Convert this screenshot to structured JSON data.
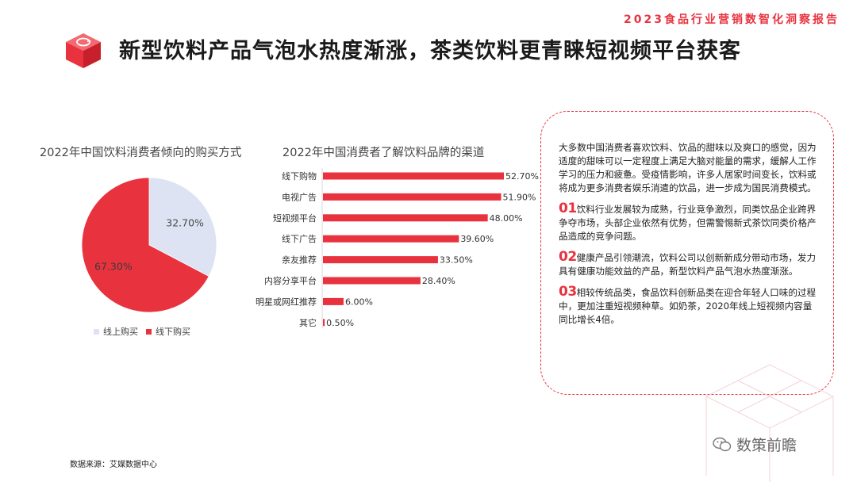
{
  "report_tag": "2023食品行业营销数智化洞察报告",
  "title": "新型饮料产品气泡水热度渐涨，茶类饮料更青睐短视频平台获客",
  "colors": {
    "accent": "#e8333f",
    "online": "#dde3f3",
    "offline": "#e8333f"
  },
  "logo_icon": "refresh-cube-icon",
  "chart_data": [
    {
      "type": "pie",
      "title": "2022年中国饮料消费者倾向的购买方式",
      "series": [
        {
          "name": "线上购买",
          "value": 32.7,
          "label": "32.70%"
        },
        {
          "name": "线下购买",
          "value": 67.3,
          "label": "67.30%"
        }
      ],
      "legend": "bottom"
    },
    {
      "type": "bar",
      "orientation": "horizontal",
      "title": "2022年中国消费者了解饮料品牌的渠道",
      "categories": [
        "线下购物",
        "电视广告",
        "短视频平台",
        "线下广告",
        "亲友推荐",
        "内容分享平台",
        "明星或网红推荐",
        "其它"
      ],
      "values": [
        52.7,
        51.9,
        48.0,
        39.6,
        33.5,
        28.4,
        6.0,
        0.5
      ],
      "labels": [
        "52.70%",
        "51.90%",
        "48.00%",
        "39.60%",
        "33.50%",
        "28.40%",
        "6.00%",
        "0.50%"
      ],
      "xlim": [
        0,
        55
      ]
    }
  ],
  "panel": {
    "intro": "大多数中国消费者喜欢饮料、饮品的甜味以及爽口的感觉，因为适度的甜味可以一定程度上满足大脑对能量的需求，缓解人工作学习的压力和疲惫。受疫情影响，许多人居家时间变长，饮料或将成为更多消费者娱乐消遣的饮品，进一步成为国民消费模式。",
    "points": [
      {
        "num": "01",
        "text": "饮料行业发展较为成熟，行业竞争激烈，同类饮品企业跨界争夺市场，头部企业依然有优势，但需警惕新式茶饮同类价格产品造成的竞争问题。"
      },
      {
        "num": "02",
        "text": "健康产品引领潮流，饮料公司以创新新成分带动市场，发力具有健康功能效益的产品，新型饮料产品气泡水热度渐涨。"
      },
      {
        "num": "03",
        "text": "相较传统品类，食品饮料创新品类在迎合年轻人口味的过程中，更加注重短视频种草。如奶茶，2020年线上短视频内容量同比增长4倍。"
      }
    ]
  },
  "source": "数据来源：艾媒数据中心",
  "watermark": {
    "text": "数策前瞻",
    "icon": "wechat-icon"
  }
}
